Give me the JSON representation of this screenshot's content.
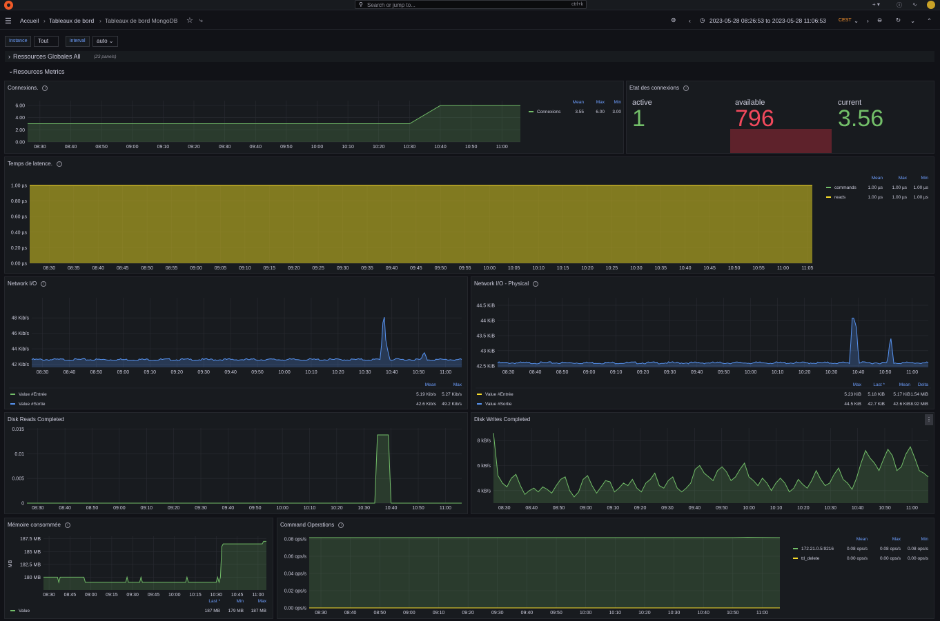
{
  "topbar": {
    "search_placeholder": "Search or jump to...",
    "search_shortcut": "ctrl+k",
    "plus_label": "+"
  },
  "nav": {
    "breadcrumb": [
      "Accueil",
      "Tableaux de bord",
      "Tableaux de bord MongoDB"
    ],
    "time_range": "2023-05-28 08:26:53 to 2023-05-28 11:06:53",
    "timezone": "CEST"
  },
  "variables": [
    {
      "label": "Instance",
      "value": "Tout"
    },
    {
      "label": "interval",
      "value": "auto"
    }
  ],
  "rows": [
    {
      "title": "Ressources Globales All",
      "sub": "(23 panels)",
      "collapsed": true
    },
    {
      "title": "Resources Metrics",
      "sub": "",
      "collapsed": false
    }
  ],
  "colors": {
    "green": "#73bf69",
    "yellow": "#fade2a",
    "blue": "#5794f2",
    "red": "#f2495c",
    "legend_header": "#6e9fff"
  },
  "panels": {
    "connexions": {
      "title": "Connexions.",
      "chart_data": {
        "type": "area",
        "x": [
          "08:26",
          "10:30",
          "10:40",
          "11:06"
        ],
        "series": [
          {
            "name": "Connexions",
            "values": [
              3,
              3,
              6,
              6
            ]
          }
        ],
        "yticks": [
          "0.00",
          "2.00",
          "4.00",
          "6.00"
        ],
        "ylim": [
          0,
          6.8
        ],
        "xticks": [
          "08:30",
          "08:40",
          "08:50",
          "09:00",
          "09:10",
          "09:20",
          "09:30",
          "09:40",
          "09:50",
          "10:00",
          "10:10",
          "10:20",
          "10:30",
          "10:40",
          "10:50",
          "11:00"
        ],
        "legend_headers": [
          "Mean",
          "Max",
          "Min"
        ],
        "legend": [
          {
            "name": "Connexions",
            "color": "#73bf69",
            "stats": [
              "3.55",
              "6.00",
              "3.00"
            ]
          }
        ]
      }
    },
    "etat": {
      "title": "Etat des connexions",
      "stats": [
        {
          "label": "active",
          "value": "1",
          "color": "#73bf69"
        },
        {
          "label": "available",
          "value": "796",
          "color": "#f2495c"
        },
        {
          "label": "current",
          "value": "3.56",
          "color": "#73bf69"
        }
      ]
    },
    "latence": {
      "title": "Temps de latence.",
      "chart_data": {
        "type": "area",
        "x": [
          "08:26",
          "11:06"
        ],
        "series": [
          {
            "name": "commands",
            "values": [
              1.0,
              1.0
            ]
          },
          {
            "name": "reads",
            "values": [
              1.0,
              1.0
            ]
          }
        ],
        "yticks": [
          "0.00 µs",
          "0.20 µs",
          "0.40 µs",
          "0.60 µs",
          "0.80 µs",
          "1.00 µs"
        ],
        "ylim": [
          0,
          1.0
        ],
        "xticks": [
          "08:30",
          "08:35",
          "08:40",
          "08:45",
          "08:50",
          "08:55",
          "09:00",
          "09:05",
          "09:10",
          "09:15",
          "09:20",
          "09:25",
          "09:30",
          "09:35",
          "09:40",
          "09:45",
          "09:50",
          "09:55",
          "10:00",
          "10:05",
          "10:10",
          "10:15",
          "10:20",
          "10:25",
          "10:30",
          "10:35",
          "10:40",
          "10:45",
          "10:50",
          "10:55",
          "11:00",
          "11:05"
        ],
        "legend_headers": [
          "Mean",
          "Max",
          "Min"
        ],
        "legend": [
          {
            "name": "commands",
            "color": "#73bf69",
            "stats": [
              "1.00 µs",
              "1.00 µs",
              "1.00 µs"
            ]
          },
          {
            "name": "reads",
            "color": "#fade2a",
            "stats": [
              "1.00 µs",
              "1.00 µs",
              "1.00 µs"
            ]
          }
        ]
      }
    },
    "netio": {
      "title": "Network I/O",
      "chart_data": {
        "type": "area",
        "series": [
          {
            "name": "Value #Entrée",
            "mean": 5.19,
            "max": 5.27
          },
          {
            "name": "Value #Sortie",
            "baseline": 42.6,
            "spikes": [
              {
                "x": "10:37",
                "y": 49.2
              },
              {
                "x": "10:38",
                "y": 44.6
              },
              {
                "x": "10:52",
                "y": 43.6
              }
            ]
          }
        ],
        "yticks": [
          "42 Kib/s",
          "44 Kib/s",
          "46 Kib/s",
          "48 Kib/s"
        ],
        "ylim": [
          41.6,
          50.6
        ],
        "xticks": [
          "08:30",
          "08:40",
          "08:50",
          "09:00",
          "09:10",
          "09:20",
          "09:30",
          "09:40",
          "09:50",
          "10:00",
          "10:10",
          "10:20",
          "10:30",
          "10:40",
          "10:50",
          "11:00"
        ],
        "legend_headers": [
          "Mean",
          "Max"
        ],
        "legend": [
          {
            "name": "Value #Entrée",
            "color": "#73bf69",
            "stats": [
              "5.19 Kib/s",
              "5.27 Kib/s"
            ]
          },
          {
            "name": "Value #Sortie",
            "color": "#5794f2",
            "stats": [
              "42.6 Kib/s",
              "49.2 Kib/s"
            ]
          }
        ]
      }
    },
    "netphys": {
      "title": "Network I/O - Physical",
      "chart_data": {
        "type": "area",
        "series": [
          {
            "name": "Value #Entrée"
          },
          {
            "name": "Value #Sortie",
            "baseline": 42.6,
            "spikes": [
              {
                "x": "10:38",
                "y": 44.5
              },
              {
                "x": "10:39",
                "y": 44.2
              },
              {
                "x": "10:52",
                "y": 43.5
              }
            ]
          }
        ],
        "yticks": [
          "42.5 KiB",
          "43 KiB",
          "43.5 KiB",
          "44 KiB",
          "44.5 KiB"
        ],
        "ylim": [
          42.45,
          44.75
        ],
        "xticks": [
          "08:30",
          "08:40",
          "08:50",
          "09:00",
          "09:10",
          "09:20",
          "09:30",
          "09:40",
          "09:50",
          "10:00",
          "10:10",
          "10:20",
          "10:30",
          "10:40",
          "10:50",
          "11:00"
        ],
        "legend_headers": [
          "Max",
          "Last *",
          "Mean",
          "Delta"
        ],
        "legend": [
          {
            "name": "Value #Entrée",
            "color": "#fade2a",
            "stats": [
              "5.23 KiB",
              "5.18 KiB",
              "5.17 KiB",
              "1.54 MiB"
            ]
          },
          {
            "name": "Value #Sortie",
            "color": "#5794f2",
            "stats": [
              "44.5 KiB",
              "42.7 KiB",
              "42.6 KiB",
              "8.92 MiB"
            ]
          }
        ]
      }
    },
    "diskreads": {
      "title": "Disk Reads Completed",
      "chart_data": {
        "type": "area",
        "x": [
          "08:26",
          "10:34",
          "10:35",
          "10:39",
          "10:40",
          "11:06"
        ],
        "series": [
          {
            "name": "Value",
            "values": [
              0,
              0,
              0.0138,
              0.0138,
              0,
              0
            ]
          }
        ],
        "yticks": [
          "0",
          "0.005",
          "0.01",
          "0.015"
        ],
        "ylim": [
          0,
          0.0152
        ],
        "xticks": [
          "08:30",
          "08:40",
          "08:50",
          "09:00",
          "09:10",
          "09:20",
          "09:30",
          "09:40",
          "09:50",
          "10:00",
          "10:10",
          "10:20",
          "10:30",
          "10:40",
          "10:50",
          "11:00"
        ]
      }
    },
    "diskwrites": {
      "title": "Disk Writes Completed",
      "chart_data": {
        "type": "area",
        "series": [
          {
            "name": "Value",
            "values": [
              8.6,
              5.2,
              4.6,
              4.3,
              5.0,
              5.3,
              4.4,
              3.7,
              4.0,
              4.2,
              3.9,
              4.3,
              4.1,
              3.8,
              4.4,
              4.9,
              5.1,
              4.0,
              3.5,
              3.9,
              4.9,
              5.2,
              4.4,
              3.8,
              4.3,
              4.8,
              4.7,
              3.9,
              4.2,
              4.6,
              4.4,
              4.9,
              4.2,
              3.9,
              4.6,
              4.9,
              5.4,
              4.4,
              4.2,
              4.8,
              5.1,
              4.2,
              3.9,
              4.2,
              4.6,
              5.7,
              6.0,
              5.4,
              5.1,
              4.8,
              5.6,
              5.9,
              5.5,
              4.8,
              5.1,
              5.7,
              6.2,
              5.1,
              4.8,
              4.4,
              5.0,
              4.6,
              4.0,
              4.6,
              5.0,
              4.6,
              3.9,
              4.2,
              4.9,
              4.5,
              4.2,
              4.8,
              5.6,
              4.9,
              4.4,
              4.6,
              5.3,
              5.8,
              4.9,
              4.6,
              4.1,
              5.0,
              6.2,
              7.2,
              6.6,
              6.2,
              5.6,
              6.5,
              7.3,
              6.8,
              5.6,
              5.9,
              6.9,
              7.5,
              6.6,
              5.6,
              5.4,
              5.1
            ]
          }
        ],
        "yticks": [
          "4 kB/s",
          "6 kB/s",
          "8 kB/s"
        ],
        "ylim": [
          3.0,
          9.0
        ],
        "xticks": [
          "08:30",
          "08:40",
          "08:50",
          "09:00",
          "09:10",
          "09:20",
          "09:30",
          "09:40",
          "09:50",
          "10:00",
          "10:10",
          "10:20",
          "10:30",
          "10:40",
          "10:50",
          "11:00"
        ]
      }
    },
    "memoire": {
      "title": "Mémoire consommée",
      "chart_data": {
        "type": "area",
        "x": [
          "08:26",
          "08:36",
          "08:37",
          "08:38",
          "08:55",
          "08:56",
          "09:25",
          "09:26",
          "09:27",
          "09:35",
          "09:36",
          "09:37",
          "10:08",
          "10:09",
          "10:10",
          "10:30",
          "10:31",
          "10:32",
          "10:33",
          "10:34",
          "10:35",
          "11:03",
          "11:04",
          "11:06"
        ],
        "series": [
          {
            "name": "Value",
            "values": [
              180,
              180,
              179,
              180,
              180,
              179,
              179,
              180,
              179,
              179,
              180,
              179,
              179,
              180,
              179,
              179,
              180,
              179,
              180,
              186,
              186.5,
              186.5,
              187,
              187
            ]
          }
        ],
        "yticks": [
          "180 MB",
          "182.5 MB",
          "185 MB",
          "187.5 MB"
        ],
        "ylim": [
          177.5,
          188
        ],
        "ylabel": "MB",
        "xticks": [
          "08:30",
          "08:45",
          "09:00",
          "09:15",
          "09:30",
          "09:45",
          "10:00",
          "10:15",
          "10:30",
          "10:45",
          "11:00"
        ],
        "legend_headers": [
          "Last *",
          "Min",
          "Max"
        ],
        "legend": [
          {
            "name": "Value",
            "color": "#73bf69",
            "stats": [
              "187 MB",
              "179 MB",
              "187 MB"
            ]
          }
        ]
      }
    },
    "cmdops": {
      "title": "Command Operations",
      "chart_data": {
        "type": "area",
        "x": [
          "08:26",
          "10:50",
          "10:55",
          "11:06"
        ],
        "series": [
          {
            "name": "172.21.0.5:9216",
            "values": [
              0.0816,
              0.0816,
              0.082,
              0.0816
            ]
          },
          {
            "name": "ttl_delete",
            "values": [
              0,
              0,
              0,
              0
            ]
          }
        ],
        "yticks": [
          "0.00 ops/s",
          "0.02 ops/s",
          "0.04 ops/s",
          "0.06 ops/s",
          "0.08 ops/s"
        ],
        "ylim": [
          0,
          0.0816
        ],
        "xticks": [
          "08:30",
          "08:40",
          "08:50",
          "09:00",
          "09:10",
          "09:20",
          "09:30",
          "09:40",
          "09:50",
          "10:00",
          "10:10",
          "10:20",
          "10:30",
          "10:40",
          "10:50",
          "11:00"
        ],
        "legend_headers": [
          "Mean",
          "Max",
          "Min"
        ],
        "legend": [
          {
            "name": "172.21.0.5:9216",
            "color": "#73bf69",
            "stats": [
              "0.08 ops/s",
              "0.08 ops/s",
              "0.08 ops/s"
            ]
          },
          {
            "name": "ttl_delete",
            "color": "#fade2a",
            "stats": [
              "0.00 ops/s",
              "0.00 ops/s",
              "0.00 ops/s"
            ]
          }
        ]
      }
    }
  }
}
